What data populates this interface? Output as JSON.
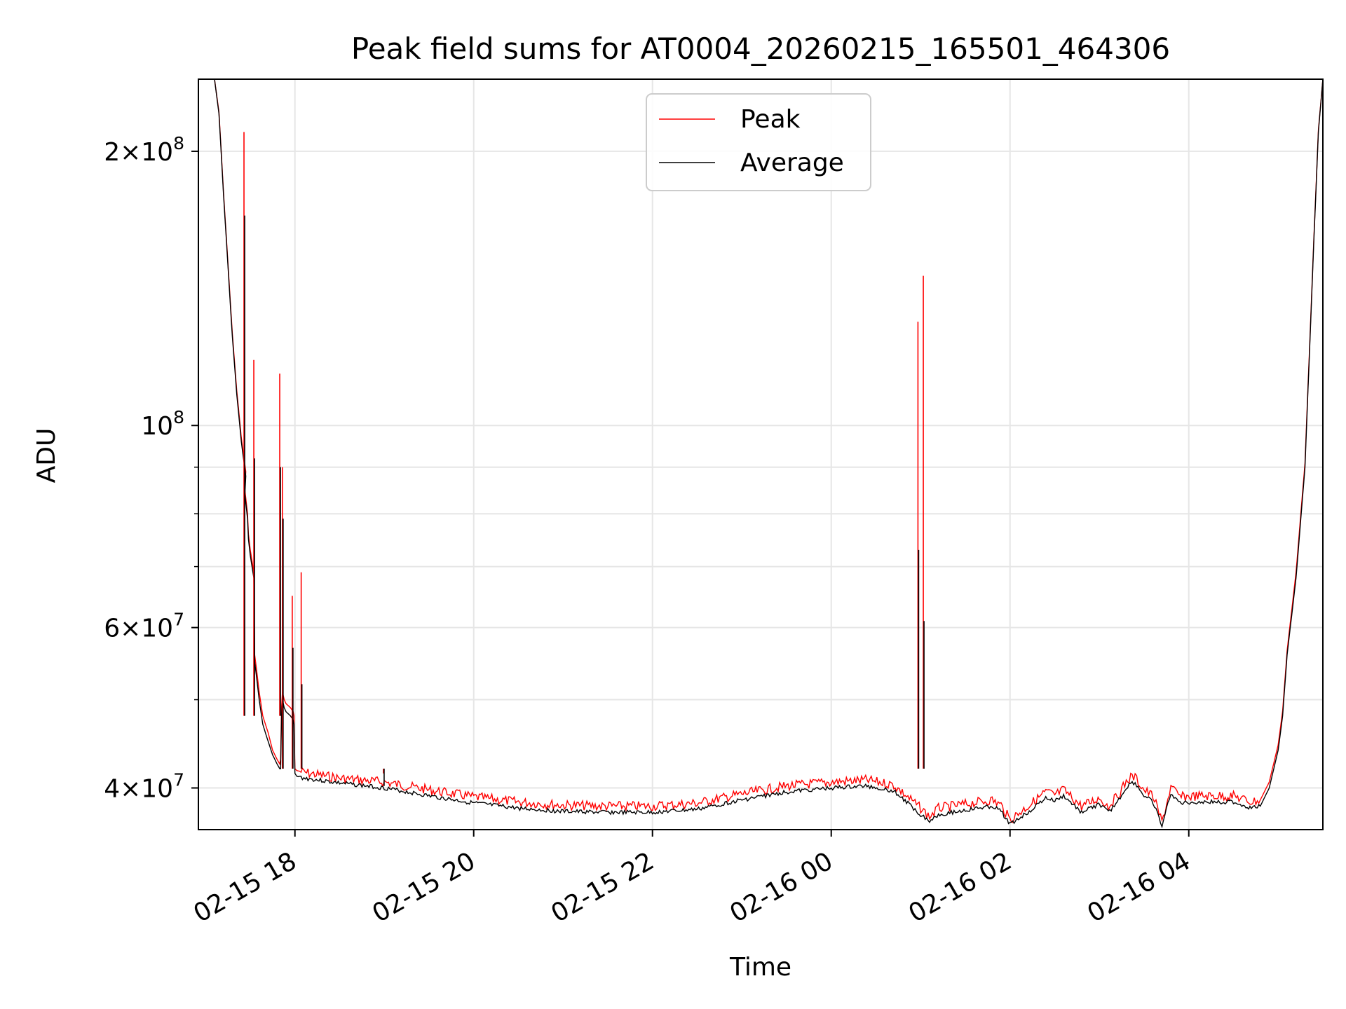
{
  "chart_data": {
    "type": "line",
    "title": "Peak field sums for AT0004_20260215_165501_464306",
    "xlabel": "Time",
    "ylabel": "ADU",
    "yscale": "log",
    "grid": true,
    "legend_position": "upper-center",
    "xlim": [
      -1.08,
      11.5
    ],
    "ylim": [
      36000000,
      240000000
    ],
    "x_units": "hours since 02-15 18:00",
    "x_ticks": [
      {
        "value": 0,
        "label": "02-15 18"
      },
      {
        "value": 2,
        "label": "02-15 20"
      },
      {
        "value": 4,
        "label": "02-15 22"
      },
      {
        "value": 6,
        "label": "02-16 00"
      },
      {
        "value": 8,
        "label": "02-16 02"
      },
      {
        "value": 10,
        "label": "02-16 04"
      }
    ],
    "y_major_ticks": [
      {
        "value": 40000000,
        "label_mantissa": "4",
        "label_base": "10",
        "label_exp": "7"
      },
      {
        "value": 60000000,
        "label_mantissa": "6",
        "label_base": "10",
        "label_exp": "7"
      },
      {
        "value": 100000000,
        "label_mantissa": "",
        "label_base": "10",
        "label_exp": "8"
      },
      {
        "value": 200000000,
        "label_mantissa": "2",
        "label_base": "10",
        "label_exp": "8"
      }
    ],
    "y_minor_grid": [
      50000000,
      70000000,
      80000000,
      90000000
    ],
    "series": [
      {
        "name": "Average",
        "color": "#000000",
        "x": [
          -1.08,
          -0.9,
          -0.85,
          -0.8,
          -0.75,
          -0.7,
          -0.65,
          -0.6,
          -0.55,
          -0.56,
          -0.53,
          -0.52,
          -0.5,
          -0.48,
          -0.46,
          -0.45,
          -0.43,
          -0.4,
          -0.36,
          -0.3,
          -0.25,
          -0.2,
          -0.17,
          -0.16,
          -0.15,
          -0.14,
          -0.12,
          -0.1,
          -0.05,
          -0.02,
          -0.01,
          0.0,
          0.02,
          0.1,
          0.5,
          1.0,
          1.5,
          2.0,
          2.5,
          3.0,
          3.5,
          4.0,
          4.5,
          5.0,
          5.5,
          6.0,
          6.4,
          6.7,
          7.0,
          7.1,
          7.2,
          7.5,
          7.8,
          7.9,
          8.0,
          8.2,
          8.4,
          8.5,
          8.6,
          8.8,
          9.0,
          9.1,
          9.2,
          9.3,
          9.35,
          9.4,
          9.5,
          9.6,
          9.7,
          9.8,
          9.9,
          10.1,
          10.3,
          10.5,
          10.7,
          10.8,
          10.9,
          11.0,
          11.05,
          11.1,
          11.2,
          11.3,
          11.35,
          11.4,
          11.45,
          11.5
        ],
        "y": [
          240000000,
          240000000,
          220000000,
          180000000,
          150000000,
          125000000,
          108000000,
          96000000,
          88000000,
          84000000,
          79000000,
          75000000,
          72000000,
          70000000,
          68000000,
          55000000,
          53000000,
          50000000,
          47000000,
          45000000,
          43500000,
          42500000,
          42000000,
          42000000,
          48000000,
          50000000,
          49000000,
          48500000,
          48000000,
          47500000,
          47000000,
          41500000,
          41200000,
          41000000,
          40500000,
          40000000,
          39200000,
          38500000,
          38000000,
          37700000,
          37600000,
          37600000,
          37900000,
          38800000,
          39600000,
          40000000,
          40200000,
          39700000,
          37400000,
          36800000,
          37400000,
          37800000,
          38200000,
          37700000,
          36500000,
          37600000,
          39000000,
          38700000,
          39200000,
          37600000,
          38400000,
          37600000,
          38600000,
          40000000,
          40500000,
          40500000,
          39200000,
          38600000,
          36300000,
          39500000,
          38500000,
          38600000,
          38600000,
          38600000,
          38000000,
          38200000,
          40000000,
          44000000,
          48000000,
          56000000,
          68000000,
          90000000,
          120000000,
          160000000,
          210000000,
          240000000
        ]
      },
      {
        "name": "Peak",
        "color": "#ff0000",
        "x": [
          -1.08,
          -0.9,
          -0.85,
          -0.8,
          -0.75,
          -0.7,
          -0.65,
          -0.6,
          -0.55,
          -0.56,
          -0.53,
          -0.52,
          -0.5,
          -0.48,
          -0.46,
          -0.45,
          -0.43,
          -0.4,
          -0.36,
          -0.3,
          -0.25,
          -0.2,
          -0.17,
          -0.16,
          -0.15,
          -0.14,
          -0.12,
          -0.1,
          -0.05,
          -0.02,
          -0.01,
          0.0,
          0.02,
          0.1,
          0.5,
          1.0,
          1.5,
          2.0,
          2.5,
          3.0,
          3.5,
          4.0,
          4.5,
          5.0,
          5.5,
          6.0,
          6.4,
          6.7,
          7.0,
          7.1,
          7.2,
          7.5,
          7.8,
          7.9,
          8.0,
          8.2,
          8.4,
          8.5,
          8.6,
          8.8,
          9.0,
          9.1,
          9.2,
          9.3,
          9.35,
          9.4,
          9.5,
          9.6,
          9.7,
          9.8,
          9.9,
          10.1,
          10.3,
          10.5,
          10.7,
          10.8,
          10.9,
          11.0,
          11.05,
          11.1,
          11.2,
          11.3,
          11.35,
          11.4,
          11.45,
          11.5
        ],
        "y": [
          240000000,
          240000000,
          221000000,
          181000000,
          151000000,
          126000000,
          109000000,
          97000000,
          89000000,
          85000000,
          80000000,
          76000000,
          73000000,
          71000000,
          69000000,
          56000000,
          54000000,
          51000000,
          48000000,
          46000000,
          44000000,
          43000000,
          42500000,
          43000000,
          49000000,
          51000000,
          50000000,
          49500000,
          49000000,
          48500000,
          48000000,
          42000000,
          41800000,
          41600000,
          41000000,
          40600000,
          39800000,
          39100000,
          38600000,
          38300000,
          38200000,
          38200000,
          38500000,
          39400000,
          40200000,
          40600000,
          40800000,
          40300000,
          38000000,
          37200000,
          38000000,
          38400000,
          38800000,
          38300000,
          36900000,
          38200000,
          39600000,
          39300000,
          39800000,
          38200000,
          39000000,
          38200000,
          39200000,
          40600000,
          41100000,
          41100000,
          39800000,
          39200000,
          36700000,
          40100000,
          39100000,
          39200000,
          39200000,
          39200000,
          38600000,
          38800000,
          40600000,
          44600000,
          48600000,
          56600000,
          69000000,
          91000000,
          121000000,
          161000000,
          211000000,
          240000000
        ]
      }
    ],
    "spikes": [
      {
        "x": -0.57,
        "peak": 210000000,
        "average": 170000000
      },
      {
        "x": -0.46,
        "peak": 118000000,
        "average": 92000000
      },
      {
        "x": -0.17,
        "peak": 114000000,
        "average": 90000000
      },
      {
        "x": -0.14,
        "peak": 90000000,
        "average": 79000000
      },
      {
        "x": -0.03,
        "peak": 65000000,
        "average": 57000000
      },
      {
        "x": 0.07,
        "peak": 69000000,
        "average": 52000000
      },
      {
        "x": 0.99,
        "peak": 41500000,
        "average": 40200000
      },
      {
        "x": 6.97,
        "peak": 130000000,
        "average": 73000000
      },
      {
        "x": 7.03,
        "peak": 146000000,
        "average": 61000000
      }
    ],
    "legend": [
      {
        "label": "Peak",
        "color": "#ff0000"
      },
      {
        "label": "Average",
        "color": "#000000"
      }
    ]
  }
}
